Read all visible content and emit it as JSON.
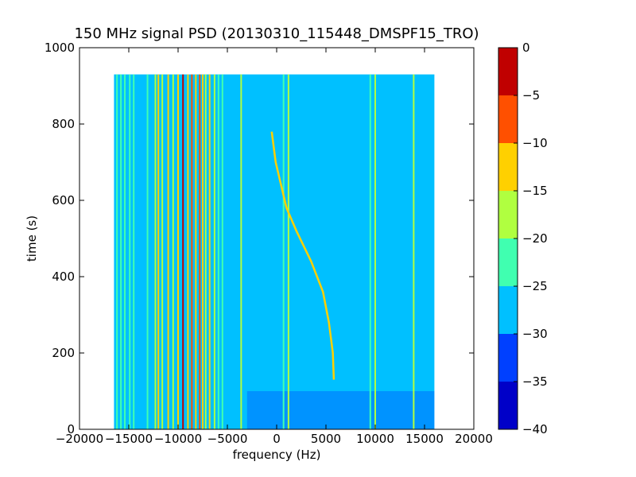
{
  "chart_data": {
    "type": "heatmap",
    "title": "150 MHz signal PSD (20130310_115448_DMSPF15_TRO)",
    "xlabel": "frequency (Hz)",
    "ylabel": "time (s)",
    "xlim": [
      -20000,
      20000
    ],
    "ylim": [
      0,
      1000
    ],
    "xticks": [
      -20000,
      -15000,
      -10000,
      -5000,
      0,
      5000,
      10000,
      15000,
      20000
    ],
    "yticks": [
      0,
      200,
      400,
      600,
      800,
      1000
    ],
    "x_tick_labels": [
      "−20000",
      "−15000",
      "−10000",
      "−5000",
      "0",
      "5000",
      "10000",
      "15000",
      "20000"
    ],
    "y_tick_labels": [
      "0",
      "200",
      "400",
      "600",
      "800",
      "1000"
    ],
    "data_extent": {
      "x": [
        -16500,
        16000
      ],
      "y": [
        0,
        930
      ]
    },
    "background_level": -27.5,
    "colorbar": {
      "levels": [
        -40,
        -35,
        -30,
        -25,
        -20,
        -15,
        -10,
        -5,
        0
      ],
      "tick_labels": [
        "−40",
        "−35",
        "−30",
        "−25",
        "−20",
        "−15",
        "−10",
        "−5",
        "0"
      ],
      "colors": [
        "#0000c8",
        "#0040ff",
        "#00c0ff",
        "#40ffb0",
        "#b0ff40",
        "#ffd000",
        "#ff5000",
        "#c00000"
      ]
    },
    "vertical_lines": [
      {
        "x": -16200,
        "y": [
          0,
          930
        ],
        "level": -22
      },
      {
        "x": -15800,
        "y": [
          0,
          930
        ],
        "level": -22
      },
      {
        "x": -15400,
        "y": [
          0,
          930
        ],
        "level": -22
      },
      {
        "x": -14900,
        "y": [
          0,
          930
        ],
        "level": -22
      },
      {
        "x": -14500,
        "y": [
          0,
          930
        ],
        "level": -22
      },
      {
        "x": -13100,
        "y": [
          0,
          930
        ],
        "level": -22
      },
      {
        "x": -12300,
        "y": [
          0,
          930
        ],
        "level": -17
      },
      {
        "x": -12000,
        "y": [
          0,
          930
        ],
        "level": -12
      },
      {
        "x": -11600,
        "y": [
          0,
          930
        ],
        "level": -17
      },
      {
        "x": -11000,
        "y": [
          0,
          930
        ],
        "level": -12
      },
      {
        "x": -10500,
        "y": [
          0,
          930
        ],
        "level": -17
      },
      {
        "x": -10000,
        "y": [
          0,
          930
        ],
        "level": -12
      },
      {
        "x": -9500,
        "y": [
          0,
          930
        ],
        "level": -2
      },
      {
        "x": -9000,
        "y": [
          0,
          930
        ],
        "level": -12
      },
      {
        "x": -8600,
        "y": [
          0,
          930
        ],
        "level": -7
      },
      {
        "x": -8200,
        "y": [
          0,
          930
        ],
        "level": -12
      },
      {
        "x": -7800,
        "y": [
          0,
          930
        ],
        "level": -7
      },
      {
        "x": -7500,
        "y": [
          0,
          930
        ],
        "level": -12
      },
      {
        "x": -7200,
        "y": [
          0,
          930
        ],
        "level": -17
      },
      {
        "x": -6800,
        "y": [
          0,
          930
        ],
        "level": -12
      },
      {
        "x": -6300,
        "y": [
          0,
          930
        ],
        "level": -17
      },
      {
        "x": -5900,
        "y": [
          0,
          930
        ],
        "level": -22
      },
      {
        "x": -5500,
        "y": [
          0,
          930
        ],
        "level": -22
      },
      {
        "x": -3600,
        "y": [
          0,
          930
        ],
        "level": -17
      },
      {
        "x": 700,
        "y": [
          0,
          930
        ],
        "level": -22
      },
      {
        "x": 1200,
        "y": [
          0,
          930
        ],
        "level": -17
      },
      {
        "x": 9500,
        "y": [
          0,
          930
        ],
        "level": -22
      },
      {
        "x": 10000,
        "y": [
          0,
          930
        ],
        "level": -17
      },
      {
        "x": 13900,
        "y": [
          0,
          930
        ],
        "level": -17
      }
    ],
    "drift_trace": {
      "level": -12,
      "points": [
        [
          5800,
          130
        ],
        [
          5700,
          200
        ],
        [
          5300,
          280
        ],
        [
          4700,
          360
        ],
        [
          3500,
          440
        ],
        [
          2000,
          520
        ],
        [
          1000,
          580
        ],
        [
          -100,
          700
        ],
        [
          -500,
          780
        ]
      ]
    },
    "low_band": {
      "y": [
        0,
        100
      ],
      "x": [
        -3000,
        16000
      ]
    }
  }
}
